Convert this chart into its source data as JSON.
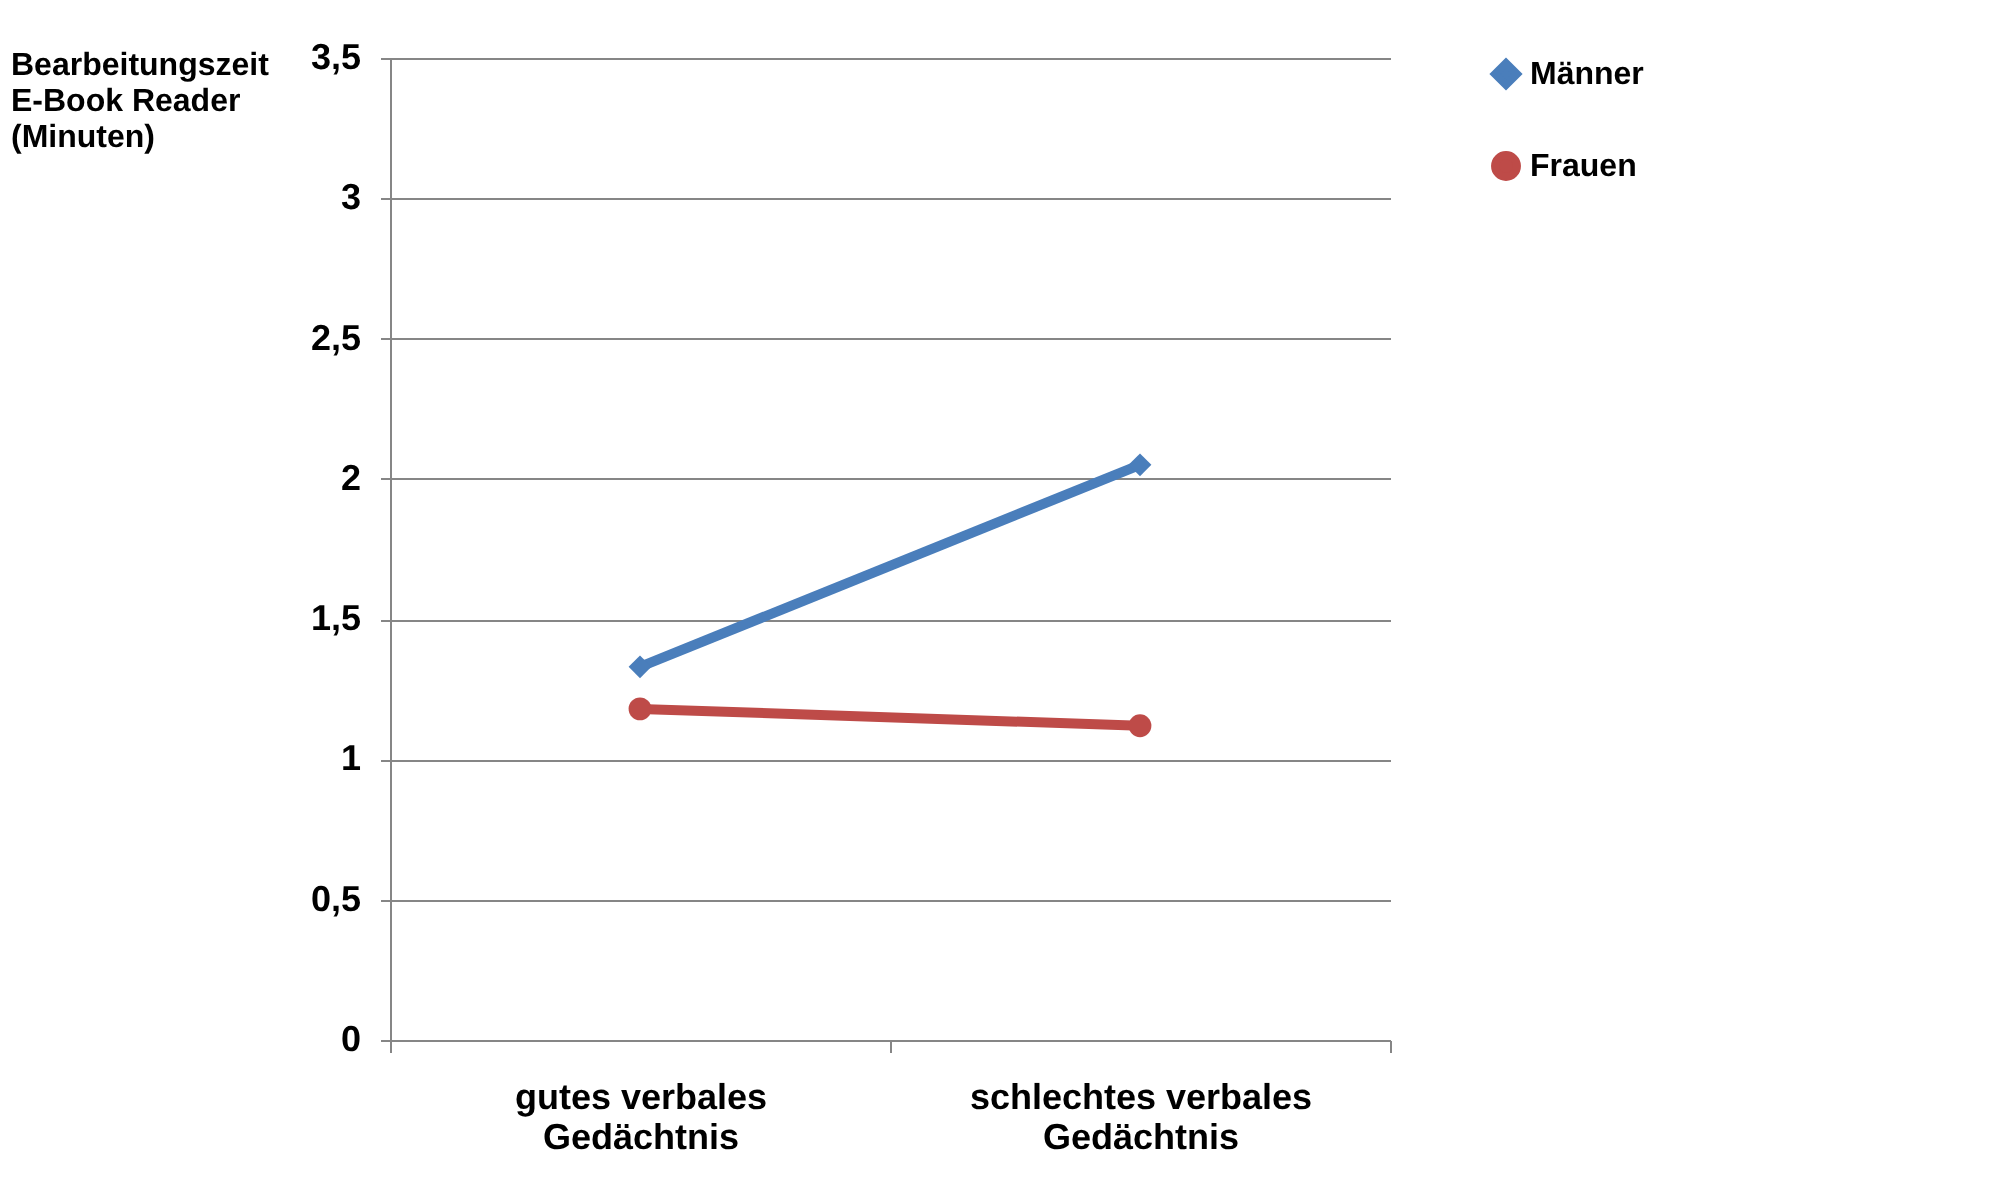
{
  "chart_data": {
    "type": "line",
    "ylabel": "Bearbeitungszeit\nE-Book Reader\n(Minuten)",
    "categories": [
      "gutes verbales Gedächtnis",
      "schlechtes verbales Gedächtnis"
    ],
    "series": [
      {
        "name": "Männer",
        "color": "#4a7ebb",
        "values": [
          1.33,
          2.05
        ],
        "marker": "diamond"
      },
      {
        "name": "Frauen",
        "color": "#be4b48",
        "values": [
          1.18,
          1.12
        ],
        "marker": "circle"
      }
    ],
    "ylim": [
      0,
      3.5
    ],
    "yticks": [
      0,
      {
        "value": 0.5,
        "label": "0,5"
      },
      1,
      {
        "value": 1.5,
        "label": "1,5"
      },
      2,
      {
        "value": 2.5,
        "label": "2,5"
      },
      3,
      {
        "value": 3.5,
        "label": "3,5"
      }
    ],
    "grid": "y",
    "legend": "right"
  }
}
